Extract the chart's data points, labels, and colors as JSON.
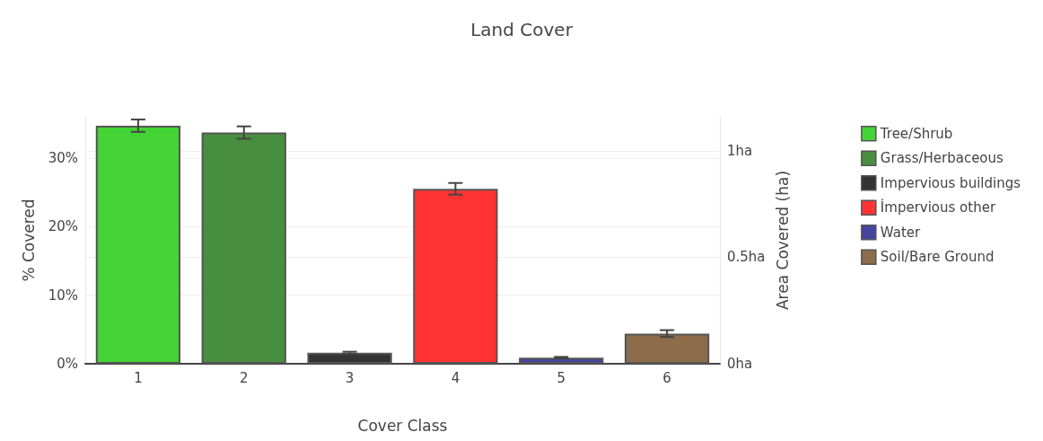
{
  "chart_data": {
    "type": "bar",
    "title": "Land Cover",
    "xlabel": "Cover Class",
    "ylabel": "% Covered",
    "y2label": "Area Covered (ha)",
    "categories": [
      "1",
      "2",
      "3",
      "4",
      "5",
      "6"
    ],
    "series": [
      {
        "name": "Tree/Shrub",
        "color": "#44d334",
        "x": [
          "1"
        ],
        "values": [
          34.7
        ],
        "errors": [
          0.9
        ]
      },
      {
        "name": "Grass/Herbaceous",
        "color": "#478e3f",
        "x": [
          "2"
        ],
        "values": [
          33.7
        ],
        "errors": [
          0.9
        ]
      },
      {
        "name": "Impervious buildings",
        "color": "#333333",
        "x": [
          "3"
        ],
        "values": [
          1.6
        ],
        "errors": [
          0.15
        ]
      },
      {
        "name": "İmpervious other",
        "color": "#ff3333",
        "x": [
          "4"
        ],
        "values": [
          25.5
        ],
        "errors": [
          0.85
        ]
      },
      {
        "name": "Water",
        "color": "#4545a0",
        "x": [
          "5"
        ],
        "values": [
          0.9
        ],
        "errors": [
          0.1
        ]
      },
      {
        "name": "Soil/Bare Ground",
        "color": "#8c6c4a",
        "x": [
          "6"
        ],
        "values": [
          4.4
        ],
        "errors": [
          0.5
        ]
      }
    ],
    "ylim": [
      0,
      36
    ],
    "yticks": [
      {
        "value": 0,
        "label": "0%"
      },
      {
        "value": 10,
        "label": "10%"
      },
      {
        "value": 20,
        "label": "20%"
      },
      {
        "value": 30,
        "label": "30%"
      }
    ],
    "y2lim": [
      0,
      1.16
    ],
    "y2ticks": [
      {
        "value": 0,
        "label": "0ha"
      },
      {
        "value": 0.5,
        "label": "0.5ha"
      },
      {
        "value": 1,
        "label": "1ha"
      }
    ],
    "grid": "y",
    "legend": "top right"
  }
}
